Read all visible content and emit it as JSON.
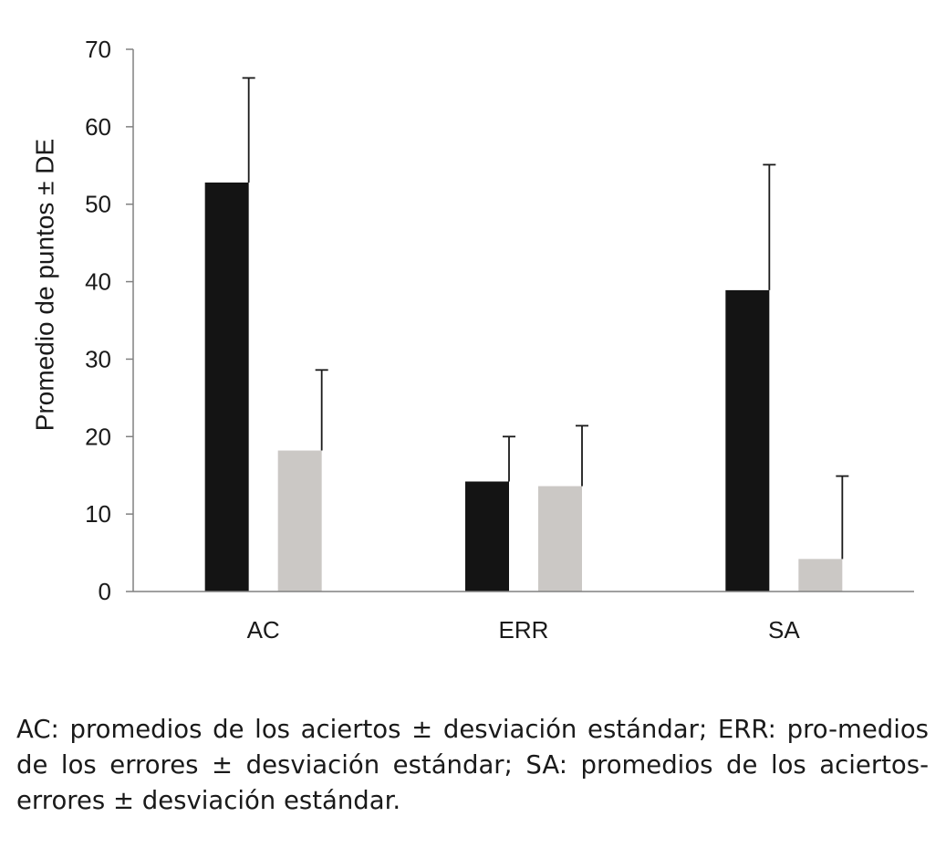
{
  "chart_data": {
    "type": "bar",
    "categories": [
      "AC",
      "ERR",
      "SA"
    ],
    "series": [
      {
        "color": "#141414",
        "values": [
          52.8,
          14.2,
          38.9
        ],
        "errors": [
          13.5,
          5.8,
          16.2
        ]
      },
      {
        "color": "#cbc8c5",
        "values": [
          18.2,
          13.6,
          4.2
        ],
        "errors": [
          10.4,
          7.8,
          10.7
        ]
      }
    ],
    "title": "",
    "xlabel": "",
    "ylabel": "Promedio de puntos ± DE",
    "ylim": [
      0,
      70
    ],
    "yticks": [
      0,
      10,
      20,
      30,
      40,
      50,
      60,
      70
    ],
    "grid": false,
    "legend": "none"
  },
  "caption": "AC: promedios de los aciertos ± desviación estándar; ERR: pro-medios de los errores ± desviación estándar; SA: promedios de los aciertos-errores ± desviación estándar."
}
